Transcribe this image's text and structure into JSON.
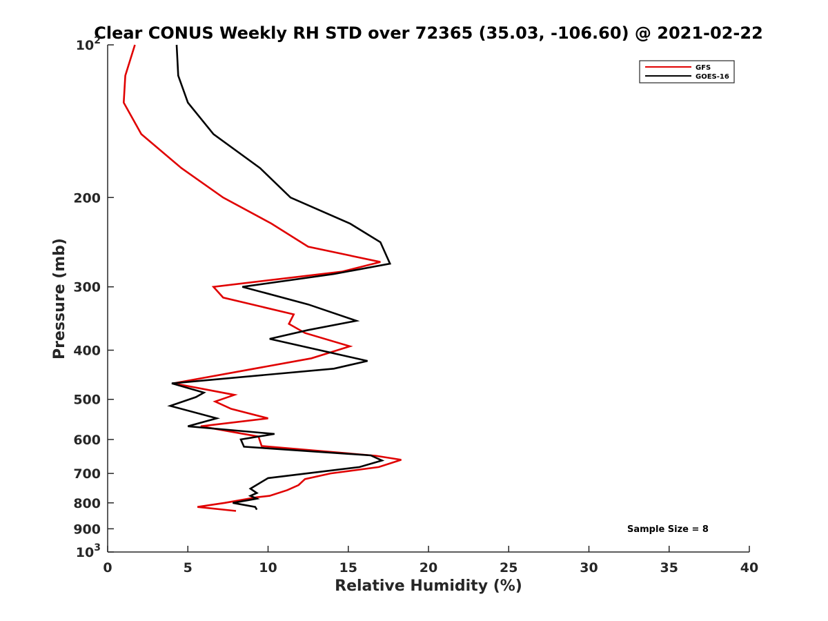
{
  "chart_data": {
    "type": "line",
    "title": "Clear CONUS Weekly RH STD over 72365 (35.03, -106.60) @ 2021-02-22",
    "xlabel": "Relative Humidity (%)",
    "ylabel": "Pressure (mb)",
    "xlim": [
      0,
      40
    ],
    "ylim": [
      100,
      1000
    ],
    "y_scale": "log",
    "y_reversed": true,
    "x_ticks": [
      0,
      5,
      10,
      15,
      20,
      25,
      30,
      35,
      40
    ],
    "x_tick_labels": [
      "0",
      "5",
      "10",
      "15",
      "20",
      "25",
      "30",
      "35",
      "40"
    ],
    "y_ticks": [
      {
        "value": 100,
        "base": "10",
        "exp": "2"
      },
      {
        "value": 200,
        "label": "200"
      },
      {
        "value": 300,
        "label": "300"
      },
      {
        "value": 400,
        "label": "400"
      },
      {
        "value": 500,
        "label": "500"
      },
      {
        "value": 600,
        "label": "600"
      },
      {
        "value": 700,
        "label": "700"
      },
      {
        "value": 800,
        "label": "800"
      },
      {
        "value": 900,
        "label": "900"
      },
      {
        "value": 1000,
        "base": "10",
        "exp": "3"
      }
    ],
    "legend": {
      "position": "top-right"
    },
    "annotation": "Sample Size = 8",
    "grid": false,
    "series": [
      {
        "name": "GFS",
        "color": "#e00000",
        "points": [
          [
            1.7,
            100
          ],
          [
            1.1,
            115
          ],
          [
            1.0,
            130
          ],
          [
            2.1,
            150
          ],
          [
            4.6,
            175
          ],
          [
            7.2,
            200
          ],
          [
            10.2,
            225
          ],
          [
            12.5,
            250
          ],
          [
            17.0,
            268
          ],
          [
            14.6,
            280
          ],
          [
            6.6,
            300
          ],
          [
            7.2,
            315
          ],
          [
            11.6,
            340
          ],
          [
            11.3,
            355
          ],
          [
            12.3,
            370
          ],
          [
            15.1,
            393
          ],
          [
            12.7,
            415
          ],
          [
            4.1,
            465
          ],
          [
            7.9,
            490
          ],
          [
            6.7,
            505
          ],
          [
            7.7,
            522
          ],
          [
            10.0,
            545
          ],
          [
            5.8,
            565
          ],
          [
            9.4,
            592
          ],
          [
            9.6,
            618
          ],
          [
            16.7,
            646
          ],
          [
            18.3,
            658
          ],
          [
            16.9,
            680
          ],
          [
            13.9,
            700
          ],
          [
            12.3,
            718
          ],
          [
            11.9,
            738
          ],
          [
            11.2,
            755
          ],
          [
            10.1,
            775
          ],
          [
            9.3,
            780
          ],
          [
            7.3,
            800
          ],
          [
            5.6,
            815
          ],
          [
            8.0,
            830
          ]
        ]
      },
      {
        "name": "GOES-16",
        "color": "#000000",
        "points": [
          [
            4.3,
            100
          ],
          [
            4.4,
            115
          ],
          [
            5.0,
            130
          ],
          [
            6.6,
            150
          ],
          [
            9.5,
            175
          ],
          [
            11.4,
            200
          ],
          [
            15.1,
            225
          ],
          [
            17.0,
            245
          ],
          [
            17.6,
            270
          ],
          [
            14.1,
            283
          ],
          [
            8.4,
            300
          ],
          [
            12.5,
            325
          ],
          [
            15.5,
            350
          ],
          [
            12.5,
            365
          ],
          [
            10.1,
            380
          ],
          [
            16.2,
            420
          ],
          [
            14.1,
            435
          ],
          [
            4.0,
            465
          ],
          [
            6.0,
            485
          ],
          [
            5.5,
            495
          ],
          [
            3.9,
            515
          ],
          [
            6.8,
            545
          ],
          [
            5.0,
            565
          ],
          [
            10.4,
            585
          ],
          [
            8.3,
            600
          ],
          [
            8.5,
            620
          ],
          [
            16.4,
            645
          ],
          [
            17.1,
            660
          ],
          [
            15.7,
            680
          ],
          [
            10.0,
            715
          ],
          [
            8.9,
            750
          ],
          [
            9.3,
            765
          ],
          [
            8.9,
            775
          ],
          [
            9.3,
            785
          ],
          [
            7.8,
            800
          ],
          [
            9.2,
            815
          ],
          [
            9.3,
            825
          ]
        ]
      }
    ]
  }
}
